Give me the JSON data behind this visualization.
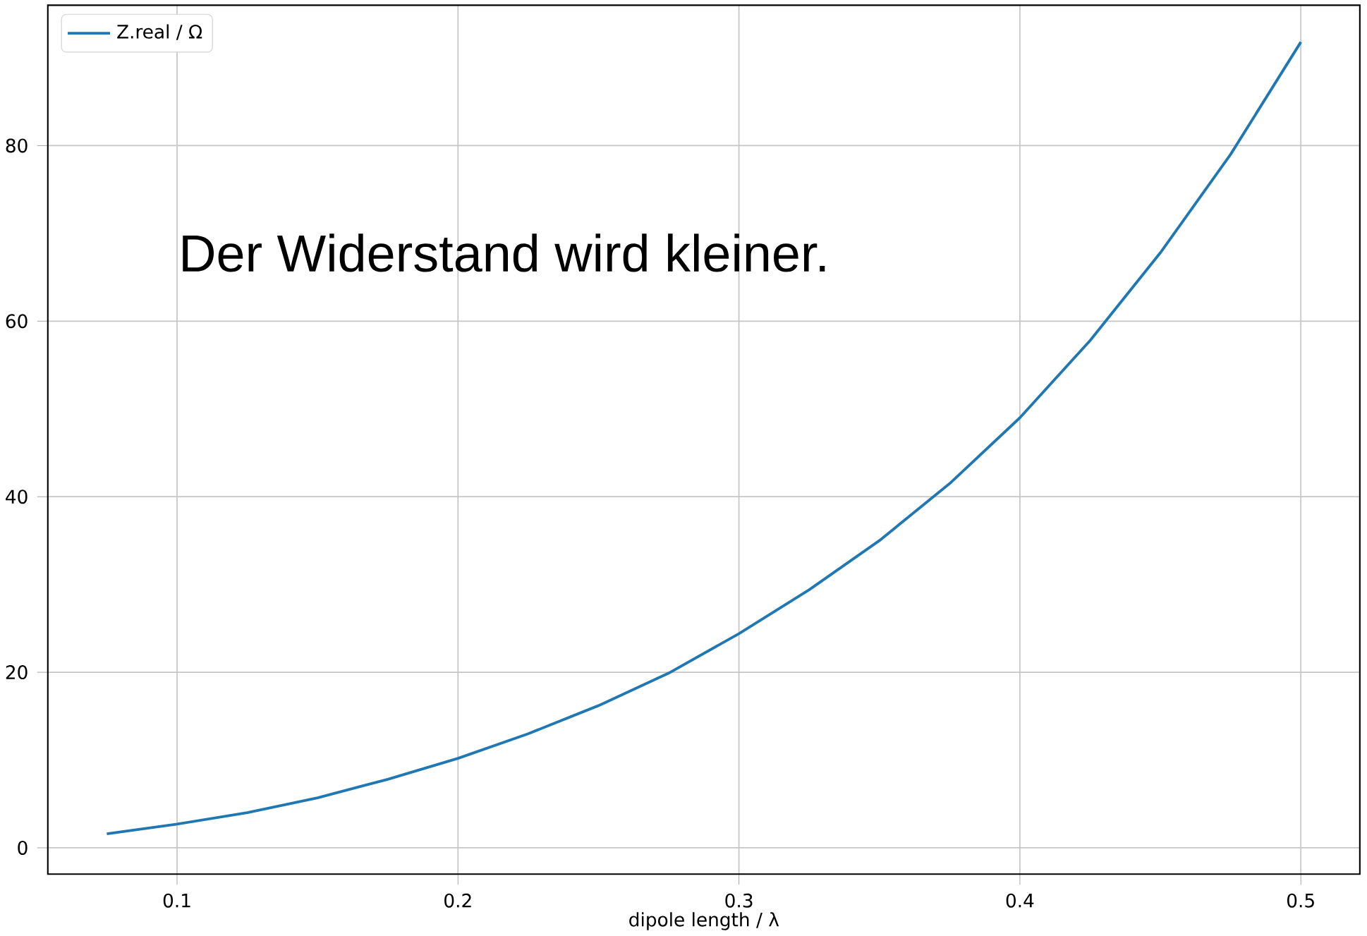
{
  "chart_data": {
    "type": "line",
    "xlabel": "dipole length / λ",
    "x": [
      0.075,
      0.1,
      0.125,
      0.15,
      0.175,
      0.2,
      0.225,
      0.25,
      0.275,
      0.3,
      0.325,
      0.35,
      0.375,
      0.4,
      0.425,
      0.45,
      0.475,
      0.5
    ],
    "series": [
      {
        "name": "Z.real / Ω",
        "color": "#1f77b4",
        "values": [
          1.6,
          2.7,
          4.0,
          5.7,
          7.8,
          10.2,
          13.0,
          16.2,
          19.9,
          24.4,
          29.4,
          35.0,
          41.5,
          49.0,
          57.8,
          67.8,
          79.0,
          91.8
        ]
      }
    ],
    "xlim": [
      0.054,
      0.521
    ],
    "ylim": [
      -3,
      96
    ],
    "xticks": [
      0.1,
      0.2,
      0.3,
      0.4,
      0.5
    ],
    "yticks": [
      0,
      20,
      40,
      60,
      80
    ],
    "grid": true,
    "legend": "top left",
    "annotations": [
      "Der Widerstand wird kleiner."
    ]
  }
}
